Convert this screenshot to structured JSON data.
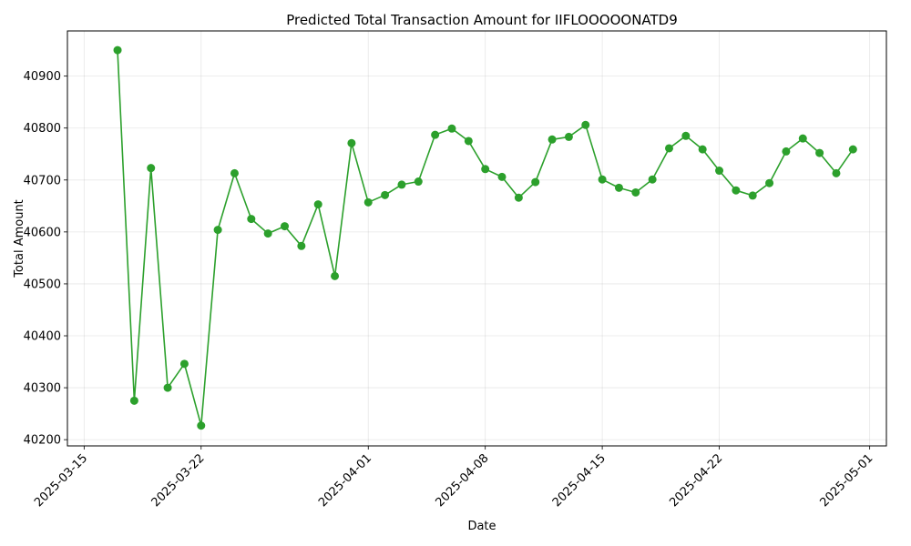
{
  "chart_data": {
    "type": "line",
    "title": "Predicted Total Transaction Amount for IIFLOOOOONATD9",
    "xlabel": "Date",
    "ylabel": "Total Amount",
    "x_tick_labels": [
      "2025-03-15",
      "2025-03-22",
      "2025-04-01",
      "2025-04-08",
      "2025-04-15",
      "2025-04-22",
      "2025-05-01"
    ],
    "x_ticks": [
      "2025-03-15",
      "2025-03-22",
      "2025-04-01",
      "2025-04-08",
      "2025-04-15",
      "2025-04-22",
      "2025-05-01"
    ],
    "y_tick_labels": [
      "40200",
      "40300",
      "40400",
      "40500",
      "40600",
      "40700",
      "40800",
      "40900"
    ],
    "y_ticks": [
      40200,
      40300,
      40400,
      40500,
      40600,
      40700,
      40800,
      40900
    ],
    "xlim": [
      "2025-03-14",
      "2025-05-02"
    ],
    "ylim": [
      40188,
      40987
    ],
    "grid": true,
    "color": "#2ca02c",
    "series": [
      {
        "x": [
          "2025-03-17",
          "2025-03-18",
          "2025-03-19",
          "2025-03-20",
          "2025-03-21",
          "2025-03-22",
          "2025-03-23",
          "2025-03-24",
          "2025-03-25",
          "2025-03-26",
          "2025-03-27",
          "2025-03-28",
          "2025-03-29",
          "2025-03-30",
          "2025-03-31",
          "2025-04-01",
          "2025-04-02",
          "2025-04-03",
          "2025-04-04",
          "2025-04-05",
          "2025-04-06",
          "2025-04-07",
          "2025-04-08",
          "2025-04-09",
          "2025-04-10",
          "2025-04-11",
          "2025-04-12",
          "2025-04-13",
          "2025-04-14",
          "2025-04-15",
          "2025-04-16",
          "2025-04-17",
          "2025-04-18",
          "2025-04-19",
          "2025-04-20",
          "2025-04-21",
          "2025-04-22",
          "2025-04-23",
          "2025-04-24",
          "2025-04-25",
          "2025-04-26",
          "2025-04-27",
          "2025-04-28",
          "2025-04-29",
          "2025-04-30"
        ],
        "values": [
          40950,
          40275,
          40723,
          40300,
          40346,
          40227,
          40604,
          40713,
          40625,
          40597,
          40611,
          40573,
          40653,
          40515,
          40771,
          40657,
          40671,
          40691,
          40697,
          40787,
          40799,
          40775,
          40721,
          40706,
          40666,
          40696,
          40778,
          40783,
          40806,
          40701,
          40685,
          40676,
          40701,
          40761,
          40785,
          40759,
          40718,
          40680,
          40670,
          40694,
          40755,
          40780,
          40752,
          40713,
          40759
        ]
      }
    ]
  }
}
